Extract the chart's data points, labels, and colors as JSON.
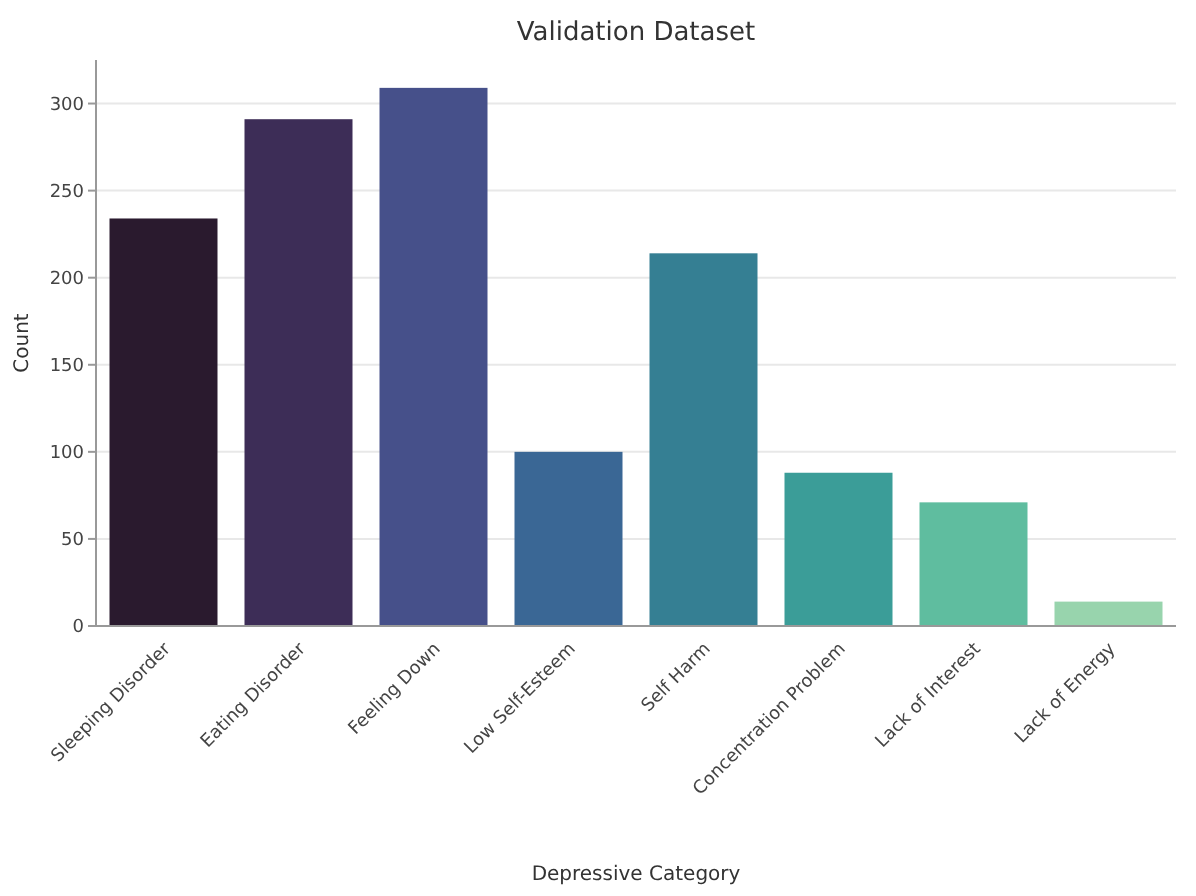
{
  "chart_data": {
    "type": "bar",
    "title": "Validation Dataset",
    "xlabel": "Depressive Category",
    "ylabel": "Count",
    "categories": [
      "Sleeping Disorder",
      "Eating Disorder",
      "Feeling Down",
      "Low Self-Esteem",
      "Self Harm",
      "Concentration Problem",
      "Lack of Interest",
      "Lack of Energy"
    ],
    "values": [
      234,
      291,
      309,
      100,
      214,
      88,
      71,
      14
    ],
    "colors": [
      "#2a1a2e",
      "#3d2d57",
      "#46508a",
      "#3a6795",
      "#357f93",
      "#3b9d98",
      "#5fbd9f",
      "#98d4ad"
    ],
    "ylim": [
      0,
      325
    ],
    "yticks": [
      0,
      50,
      100,
      150,
      200,
      250,
      300
    ],
    "grid": "y"
  }
}
